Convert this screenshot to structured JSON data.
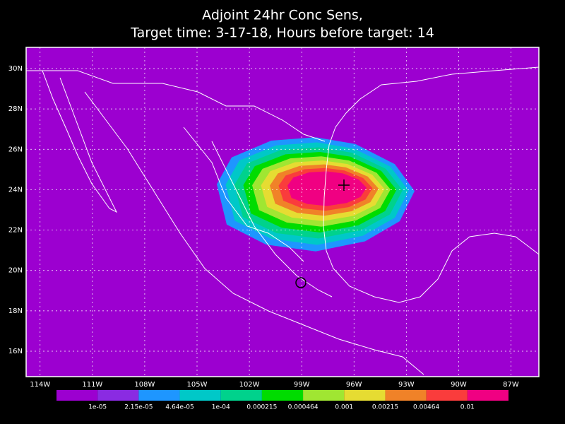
{
  "chart_data": {
    "type": "map",
    "title": "Adjoint 24hr Conc Sens,",
    "subtitle": "Target time: 3-17-18, Hours before target: 14",
    "xlim": [
      -114.8,
      -85.4
    ],
    "ylim": [
      14.74,
      31.05
    ],
    "xticks": [
      {
        "value": -114,
        "label": "114W"
      },
      {
        "value": -111,
        "label": "111W"
      },
      {
        "value": -108,
        "label": "108W"
      },
      {
        "value": -105,
        "label": "105W"
      },
      {
        "value": -102,
        "label": "102W"
      },
      {
        "value": -99,
        "label": "99W"
      },
      {
        "value": -96,
        "label": "96W"
      },
      {
        "value": -93,
        "label": "93W"
      },
      {
        "value": -90,
        "label": "90W"
      },
      {
        "value": -87,
        "label": "87W"
      }
    ],
    "yticks": [
      {
        "value": 16,
        "label": "16N"
      },
      {
        "value": 18,
        "label": "18N"
      },
      {
        "value": 20,
        "label": "20N"
      },
      {
        "value": 22,
        "label": "22N"
      },
      {
        "value": 24,
        "label": "24N"
      },
      {
        "value": 26,
        "label": "26N"
      },
      {
        "value": 28,
        "label": "28N"
      },
      {
        "value": 30,
        "label": "30N"
      }
    ],
    "grid": true,
    "colorbar": {
      "colors": [
        "#9c00d0",
        "#8a2be2",
        "#1e96ff",
        "#00c8c8",
        "#00d28c",
        "#00dc00",
        "#a0e632",
        "#e6dc32",
        "#f08228",
        "#fa3c3c",
        "#f00082"
      ],
      "labels": [
        "1e-05",
        "2.15e-05",
        "4.64e-05",
        "1e-04",
        "0.000215",
        "0.000464",
        "0.001",
        "0.00215",
        "0.00464",
        "0.01"
      ]
    }
  }
}
